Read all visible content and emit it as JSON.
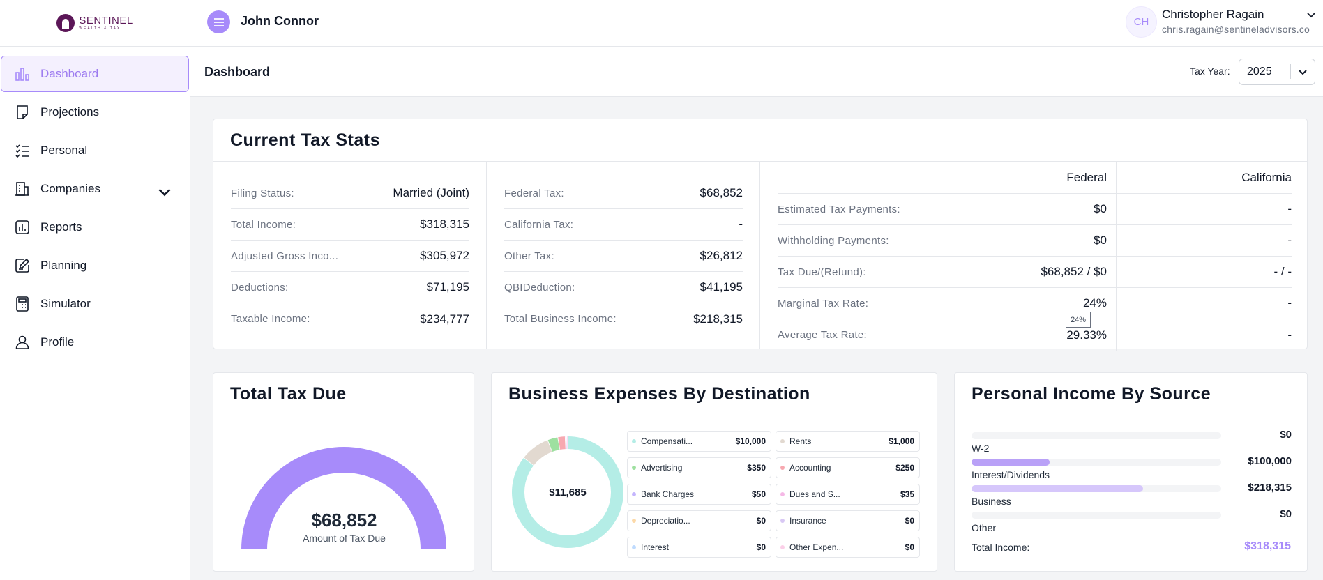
{
  "brand": {
    "name": "SENTINEL",
    "tagline": "WEALTH & TAX"
  },
  "sidebar": {
    "items": [
      {
        "label": "Dashboard",
        "icon": "bar-chart-icon",
        "active": true
      },
      {
        "label": "Projections",
        "icon": "note-icon"
      },
      {
        "label": "Personal",
        "icon": "checklist-icon"
      },
      {
        "label": "Companies",
        "icon": "building-icon",
        "expandable": true
      },
      {
        "label": "Reports",
        "icon": "chart-icon"
      },
      {
        "label": "Planning",
        "icon": "edit-icon"
      },
      {
        "label": "Simulator",
        "icon": "calculator-icon"
      },
      {
        "label": "Profile",
        "icon": "user-icon"
      }
    ]
  },
  "topbar": {
    "client_name": "John Connor",
    "user": {
      "initials": "CH",
      "name": "Christopher Ragain",
      "email": "chris.ragain@sentineladvisors.co"
    }
  },
  "page": {
    "title": "Dashboard",
    "tax_year_label": "Tax Year:",
    "tax_year": "2025"
  },
  "current_tax_stats": {
    "title": "Current Tax Stats",
    "col1": [
      {
        "label": "Filing Status:",
        "value": "Married (Joint)"
      },
      {
        "label": "Total Income:",
        "value": "$318,315"
      },
      {
        "label": "Adjusted Gross Inco...",
        "value": "$305,972"
      },
      {
        "label": "Deductions:",
        "value": "$71,195"
      },
      {
        "label": "Taxable Income:",
        "value": "$234,777"
      }
    ],
    "col2": [
      {
        "label": "Federal Tax:",
        "value": "$68,852"
      },
      {
        "label": "California Tax:",
        "value": "-"
      },
      {
        "label": "Other Tax:",
        "value": "$26,812"
      },
      {
        "label": "QBIDeduction:",
        "value": "$41,195"
      },
      {
        "label": "Total Business Income:",
        "value": "$218,315"
      }
    ],
    "col3": {
      "headers": {
        "federal": "Federal",
        "state": "California"
      },
      "rows": [
        {
          "label": "Estimated Tax Payments:",
          "federal": "$0",
          "state": "-"
        },
        {
          "label": "Withholding Payments:",
          "federal": "$0",
          "state": "-"
        },
        {
          "label": "Tax Due/(Refund):",
          "federal": "$68,852 / $0",
          "state": "- / -"
        },
        {
          "label": "Marginal Tax Rate:",
          "federal": "24%",
          "state": "-"
        },
        {
          "label": "Average Tax Rate:",
          "federal": "29.33%",
          "state": "-"
        }
      ]
    },
    "tooltip": "24%"
  },
  "total_tax_due": {
    "title": "Total Tax Due",
    "value": "$68,852",
    "label": "Amount of Tax Due",
    "gauge_fraction": 1.0,
    "color": "#a78bfa"
  },
  "business_expenses": {
    "title": "Business Expenses By Destination",
    "total": "$11,685",
    "items": [
      {
        "label": "Compensati...",
        "value": "$10,000",
        "amount": 10000,
        "color": "#b4ede6"
      },
      {
        "label": "Rents",
        "value": "$1,000",
        "amount": 1000,
        "color": "#e2d9d0"
      },
      {
        "label": "Advertising",
        "value": "$350",
        "amount": 350,
        "color": "#9ee0a0"
      },
      {
        "label": "Accounting",
        "value": "$250",
        "amount": 250,
        "color": "#f7a8b0"
      },
      {
        "label": "Bank Charges",
        "value": "$50",
        "amount": 50,
        "color": "#c4b5fd"
      },
      {
        "label": "Dues and S...",
        "value": "$35",
        "amount": 35,
        "color": "#f5b8e6"
      },
      {
        "label": "Depreciatio...",
        "value": "$0",
        "amount": 0,
        "color": "#fcd9a8"
      },
      {
        "label": "Insurance",
        "value": "$0",
        "amount": 0,
        "color": "#d8c8f4"
      },
      {
        "label": "Interest",
        "value": "$0",
        "amount": 0,
        "color": "#bfdbfe"
      },
      {
        "label": "Other Expen...",
        "value": "$0",
        "amount": 0,
        "color": "#fbcfe8"
      }
    ]
  },
  "personal_income": {
    "title": "Personal Income By Source",
    "rows": [
      {
        "label": "W-2",
        "value": "$0",
        "fraction": 0,
        "color": "#a78bfa"
      },
      {
        "label": "Interest/Dividends",
        "value": "$100,000",
        "fraction": 0.314,
        "color": "#b9a1f7"
      },
      {
        "label": "Business",
        "value": "$218,315",
        "fraction": 0.686,
        "color": "#d6c7fb"
      },
      {
        "label": "Other",
        "value": "$0",
        "fraction": 0,
        "color": "#a78bfa"
      }
    ],
    "total_label": "Total Income:",
    "total_value": "$318,315"
  }
}
